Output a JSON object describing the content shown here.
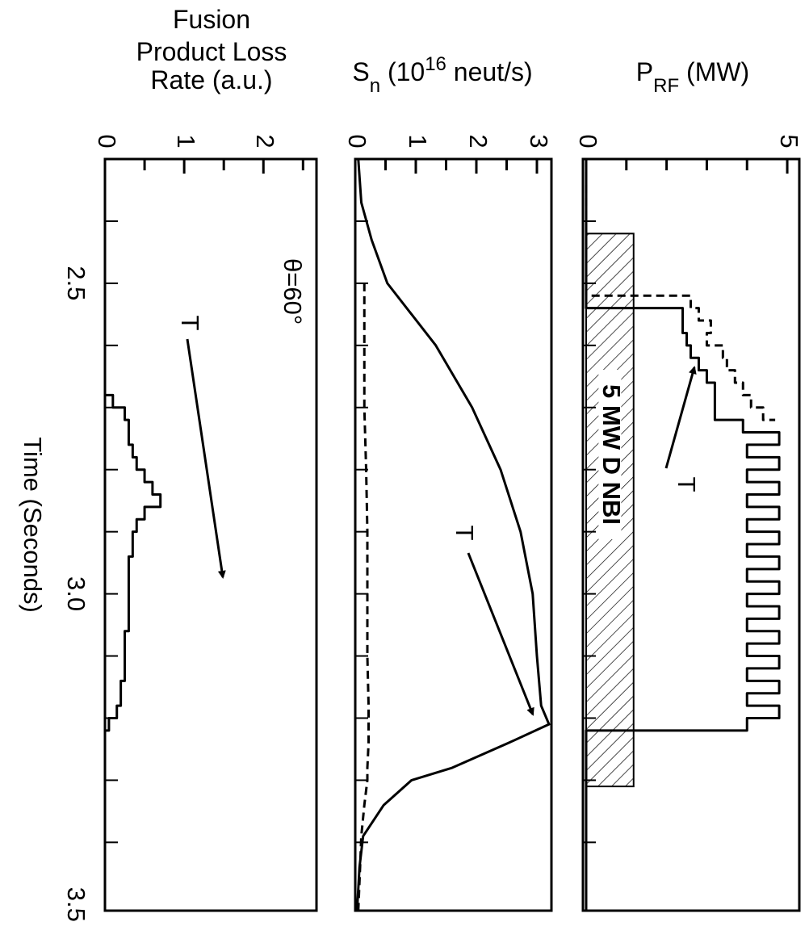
{
  "chart_data": [
    {
      "type": "line",
      "step": true,
      "title_parts": [
        {
          "text": "Fusion"
        },
        {
          "text": "Product Loss"
        },
        {
          "text": "Rate (a.u.)"
        }
      ],
      "xlabel": "Time (Seconds)",
      "annotations": [
        "θ=60°",
        "T"
      ],
      "x": [
        2.3,
        2.66,
        2.68,
        2.7,
        2.72,
        2.74,
        2.76,
        2.78,
        2.8,
        2.82,
        2.84,
        2.86,
        2.88,
        2.9,
        2.94,
        2.98,
        3.02,
        3.06,
        3.1,
        3.14,
        3.18,
        3.2,
        3.22,
        3.5
      ],
      "series": [
        {
          "color": "#000000",
          "dashed": false,
          "values": [
            0,
            0,
            0.1,
            0.25,
            0.3,
            0.3,
            0.35,
            0.4,
            0.5,
            0.6,
            0.7,
            0.5,
            0.4,
            0.35,
            0.3,
            0.3,
            0.3,
            0.25,
            0.25,
            0.2,
            0.15,
            0.05,
            0,
            0
          ]
        }
      ],
      "xlim": [
        2.3,
        3.51
      ],
      "xticks": [
        2.5,
        {
          "value": 3,
          "label": "3.0"
        },
        3.5
      ],
      "xtick_marks": [
        2.4,
        2.5,
        2.6,
        2.7,
        2.8,
        2.9,
        3.0,
        3.1,
        3.2,
        3.3,
        3.4
      ],
      "ylim": [
        0,
        2.67
      ],
      "yticks": [
        0,
        1,
        2
      ],
      "yminor_ticks": [
        0.5,
        1.5,
        2.5
      ]
    },
    {
      "type": "line",
      "step": false,
      "title_parts": [
        {
          "text": "S"
        },
        {
          "text": "n",
          "shift": "sub"
        },
        {
          "text": " (10"
        },
        {
          "text": "16",
          "shift": "super"
        },
        {
          "text": " neut/s)"
        }
      ],
      "annotations": [
        "T"
      ],
      "x": [
        2.3,
        2.37,
        2.43,
        2.5,
        2.6,
        2.7,
        2.8,
        2.9,
        3.0,
        3.1,
        3.18,
        3.21,
        3.24,
        3.28,
        3.3,
        3.34,
        3.39,
        3.44,
        3.51
      ],
      "series": [
        {
          "color": "#000000",
          "dashed": false,
          "values": [
            0.05,
            0.1,
            0.27,
            0.53,
            1.33,
            1.93,
            2.4,
            2.73,
            2.93,
            3.0,
            3.07,
            3.2,
            2.53,
            1.6,
            0.93,
            0.47,
            0.13,
            0.07,
            0.03
          ]
        },
        {
          "color": "#000000",
          "dashed": true,
          "values": [
            null,
            null,
            null,
            0.15,
            0.15,
            0.15,
            0.18,
            0.2,
            0.2,
            0.2,
            0.22,
            0.22,
            0.22,
            0.2,
            0.2,
            0.15,
            0.1,
            0.08,
            0.05
          ]
        }
      ],
      "xlim": [
        2.3,
        3.51
      ],
      "xtick_marks": [
        2.4,
        2.5,
        2.6,
        2.7,
        2.8,
        2.9,
        3.0,
        3.1,
        3.2,
        3.3,
        3.4
      ],
      "ylim": [
        0,
        3.24
      ],
      "yticks": [
        0,
        1,
        2,
        3
      ],
      "yminor_ticks": [
        0.5,
        1.5,
        2.5
      ]
    },
    {
      "type": "line",
      "step": true,
      "title_parts": [
        {
          "text": "P"
        },
        {
          "text": "RF",
          "shift": "sub"
        },
        {
          "text": " (MW)"
        }
      ],
      "annotations": [
        "T"
      ],
      "bar": {
        "label": "5 MW D NBI",
        "start": 2.42,
        "end": 3.31,
        "value": 1.18
      },
      "x": [
        2.3,
        2.52,
        2.54,
        2.56,
        2.58,
        2.6,
        2.62,
        2.64,
        2.66,
        2.68,
        2.7,
        2.72,
        2.74,
        2.76,
        2.78,
        2.8,
        2.82,
        2.84,
        2.86,
        2.88,
        2.9,
        2.92,
        2.94,
        2.96,
        2.98,
        3.0,
        3.02,
        3.04,
        3.06,
        3.08,
        3.1,
        3.12,
        3.14,
        3.16,
        3.18,
        3.2,
        3.22,
        3.51
      ],
      "series": [
        {
          "color": "#000000",
          "dashed": false,
          "values": [
            0,
            0,
            2.4,
            2.4,
            2.5,
            2.6,
            2.8,
            3.0,
            3.2,
            3.2,
            3.2,
            3.9,
            4.8,
            4.0,
            4.8,
            4.0,
            4.8,
            4.0,
            4.8,
            4.0,
            4.8,
            4.0,
            4.8,
            4.0,
            4.8,
            4.0,
            4.8,
            4.0,
            4.8,
            4.0,
            4.8,
            4.0,
            4.8,
            4.0,
            4.8,
            4.0,
            0,
            0
          ]
        },
        {
          "color": "#000000",
          "dashed": true,
          "values": [
            0,
            2.6,
            2.8,
            3.1,
            3.0,
            3.4,
            3.5,
            3.7,
            3.9,
            4.1,
            4.4,
            4.7,
            null,
            null,
            null,
            null,
            null,
            null,
            null,
            null,
            null,
            null,
            null,
            null,
            null,
            null,
            null,
            null,
            null,
            null,
            null,
            null,
            null,
            null,
            null,
            null,
            null,
            null
          ]
        }
      ],
      "xlim": [
        2.3,
        3.51
      ],
      "xtick_marks": [
        2.4,
        2.5,
        2.6,
        2.7,
        2.8,
        2.9,
        3.0,
        3.1,
        3.2,
        3.3,
        3.4
      ],
      "ylim": [
        -0.08,
        5.3
      ],
      "yticks": [
        0,
        5
      ],
      "yminor_ticks": [
        1,
        2,
        3,
        4
      ]
    }
  ]
}
